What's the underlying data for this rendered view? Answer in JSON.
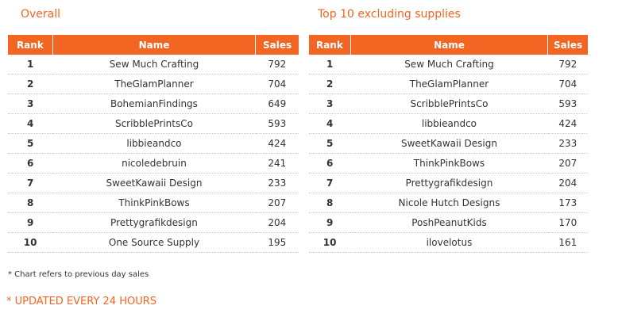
{
  "overall": {
    "title": "Overall",
    "headers": {
      "rank": "Rank",
      "name": "Name",
      "sales": "Sales"
    },
    "rows": [
      {
        "rank": "1",
        "name": "Sew Much Crafting",
        "sales": "792"
      },
      {
        "rank": "2",
        "name": "TheGlamPlanner",
        "sales": "704"
      },
      {
        "rank": "3",
        "name": "BohemianFindings",
        "sales": "649"
      },
      {
        "rank": "4",
        "name": "ScribblePrintsCo",
        "sales": "593"
      },
      {
        "rank": "5",
        "name": "libbieandco",
        "sales": "424"
      },
      {
        "rank": "6",
        "name": "nicoledebruin",
        "sales": "241"
      },
      {
        "rank": "7",
        "name": "SweetKawaii Design",
        "sales": "233"
      },
      {
        "rank": "8",
        "name": "ThinkPinkBows",
        "sales": "207"
      },
      {
        "rank": "9",
        "name": "Prettygrafikdesign",
        "sales": "204"
      },
      {
        "rank": "10",
        "name": "One Source Supply",
        "sales": "195"
      }
    ]
  },
  "excluding_supplies": {
    "title": "Top 10 excluding supplies",
    "headers": {
      "rank": "Rank",
      "name": "Name",
      "sales": "Sales"
    },
    "rows": [
      {
        "rank": "1",
        "name": "Sew Much Crafting",
        "sales": "792"
      },
      {
        "rank": "2",
        "name": "TheGlamPlanner",
        "sales": "704"
      },
      {
        "rank": "3",
        "name": "ScribblePrintsCo",
        "sales": "593"
      },
      {
        "rank": "4",
        "name": "libbieandco",
        "sales": "424"
      },
      {
        "rank": "5",
        "name": "SweetKawaii Design",
        "sales": "233"
      },
      {
        "rank": "6",
        "name": "ThinkPinkBows",
        "sales": "207"
      },
      {
        "rank": "7",
        "name": "Prettygrafikdesign",
        "sales": "204"
      },
      {
        "rank": "8",
        "name": "Nicole Hutch Designs",
        "sales": "173"
      },
      {
        "rank": "9",
        "name": "PoshPeanutKids",
        "sales": "170"
      },
      {
        "rank": "10",
        "name": "ilovelotus",
        "sales": "161"
      }
    ]
  },
  "footnote": "* Chart refers to previous day sales",
  "updated": "* UPDATED EVERY 24 HOURS",
  "colors": {
    "accent": "#f26522",
    "text": "#333333",
    "divider": "#c8c8c8"
  }
}
